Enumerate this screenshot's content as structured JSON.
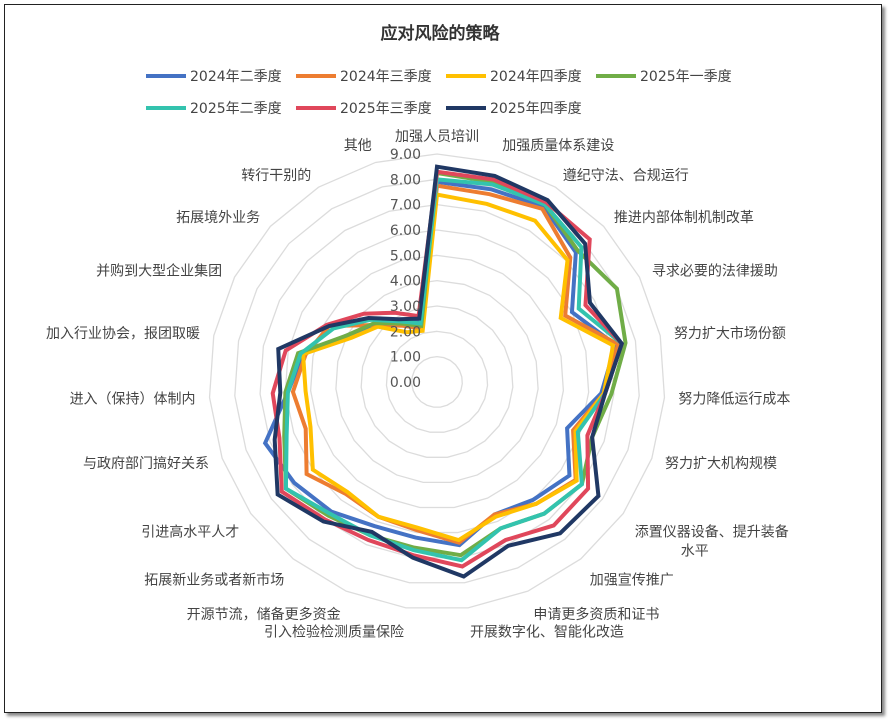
{
  "chart_data": {
    "type": "radar",
    "title": "应对风险的策略",
    "legend_position": "top",
    "grid": true,
    "rlim": [
      0,
      9
    ],
    "ticks": [
      "0.00",
      "1.00",
      "2.00",
      "3.00",
      "4.00",
      "5.00",
      "6.00",
      "7.00",
      "8.00",
      "9.00"
    ],
    "categories": [
      "加强人员培训",
      "加强质量体系建设",
      "遵纪守法、合规运行",
      "推进内部体制机制改革",
      "寻求必要的法律援助",
      "努力扩大市场份额",
      "努力降低运行成本",
      "努力扩大机构规模",
      "添置仪器设备、提升装备水平",
      "加强宣传推广",
      "申请更多资质和证书",
      "开展数字化、智能化改造",
      "引入检验检测质量保险",
      "开源节流，储备更多资金",
      "拓展新业务或者新市场",
      "引进高水平人才",
      "与政府部门搞好关系",
      "进入（保持）体制内",
      "加入行业协会，报团取暖",
      "并购到大型企业集团",
      "拓展境外业务",
      "转行干别的",
      "其他"
    ],
    "series": [
      {
        "name": "2024年二季度",
        "color": "#4472C4",
        "values": [
          7.9,
          7.9,
          8.1,
          7.5,
          6.0,
          7.2,
          6.5,
          5.45,
          6.4,
          6.0,
          5.7,
          6.5,
          6.2,
          6.2,
          6.6,
          6.9,
          7.2,
          5.9,
          5.4,
          4.0,
          3.3,
          2.7,
          2.5
        ]
      },
      {
        "name": "2024年三季度",
        "color": "#ED7D31",
        "values": [
          7.75,
          7.7,
          8.0,
          7.2,
          5.7,
          7.3,
          6.6,
          5.7,
          6.7,
          6.2,
          5.7,
          6.4,
          5.9,
          5.8,
          5.7,
          6.3,
          5.5,
          5.7,
          5.3,
          4.8,
          3.3,
          2.6,
          2.2
        ]
      },
      {
        "name": "2024年四季度",
        "color": "#FFC000",
        "values": [
          7.4,
          7.3,
          7.45,
          7.05,
          5.5,
          7.1,
          6.6,
          5.8,
          6.75,
          6.2,
          5.8,
          6.3,
          5.8,
          5.8,
          5.6,
          6.0,
          5.3,
          5.2,
          5.4,
          3.8,
          3.2,
          2.3,
          2.1
        ]
      },
      {
        "name": "2025年一季度",
        "color": "#70AD47",
        "values": [
          8.25,
          8.2,
          8.2,
          7.6,
          8.0,
          7.6,
          6.9,
          6.5,
          7.0,
          6.7,
          6.3,
          6.9,
          6.6,
          6.6,
          6.8,
          7.3,
          6.4,
          6.0,
          5.6,
          4.0,
          3.4,
          2.7,
          2.3
        ]
      },
      {
        "name": "2025年二季度",
        "color": "#33C3AE",
        "values": [
          8.0,
          8.1,
          8.2,
          7.8,
          6.3,
          7.45,
          6.65,
          5.9,
          7.0,
          6.7,
          6.3,
          7.1,
          6.7,
          6.6,
          6.7,
          7.3,
          6.3,
          5.9,
          5.5,
          4.6,
          3.6,
          2.8,
          2.4
        ]
      },
      {
        "name": "2025年三季度",
        "color": "#E0475B",
        "values": [
          8.3,
          8.3,
          8.3,
          8.25,
          6.6,
          7.45,
          6.65,
          6.3,
          7.3,
          7.3,
          6.8,
          7.35,
          6.9,
          6.8,
          7.0,
          7.5,
          6.6,
          6.5,
          6.1,
          4.9,
          3.95,
          3.2,
          2.7
        ]
      },
      {
        "name": "2025年四季度",
        "color": "#203864",
        "values": [
          8.5,
          8.45,
          8.4,
          8.0,
          6.8,
          7.45,
          6.65,
          6.5,
          7.8,
          7.7,
          7.05,
          7.75,
          7.0,
          6.45,
          7.1,
          7.7,
          6.8,
          6.2,
          6.4,
          4.8,
          3.7,
          2.9,
          2.6
        ]
      }
    ]
  }
}
